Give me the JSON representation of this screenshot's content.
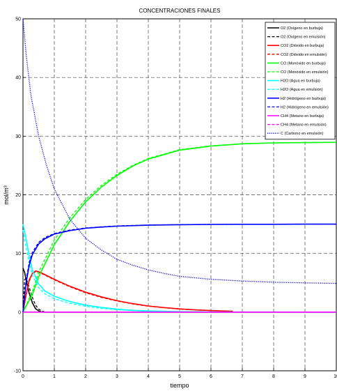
{
  "chart_data": {
    "type": "line",
    "title": "CONCENTRACIONES FINALES",
    "xlabel": "tiempo",
    "ylabel": "mol/m³",
    "xlim": [
      0,
      10
    ],
    "ylim": [
      -10,
      50
    ],
    "xticks": [
      0,
      1,
      2,
      3,
      4,
      5,
      6,
      7,
      8,
      9,
      10
    ],
    "yticks": [
      -10,
      0,
      10,
      20,
      30,
      40,
      50
    ],
    "grid": true,
    "legend_position": "top-right",
    "series": [
      {
        "name": "O2 (Oxígeno en burbuja)",
        "color": "#000000",
        "style": "solid",
        "x": [
          0,
          0.05,
          0.1,
          0.2,
          0.3,
          0.4,
          0.5,
          0.6,
          10
        ],
        "y": [
          7.5,
          6.8,
          5.5,
          3.2,
          1.6,
          0.6,
          0.2,
          0,
          0
        ]
      },
      {
        "name": "O2 (Oxígeno en emulsión)",
        "color": "#000000",
        "style": "dashed",
        "x": [
          0,
          0.05,
          0.1,
          0.2,
          0.3,
          0.4,
          0.5,
          0.6,
          0.7,
          10
        ],
        "y": [
          0,
          5.5,
          5.8,
          4.2,
          2.5,
          1.2,
          0.5,
          0.2,
          0,
          0
        ]
      },
      {
        "name": "CO2 (Dióxido en burbuja)",
        "color": "#ff0000",
        "style": "solid",
        "x": [
          0,
          0.1,
          0.2,
          0.3,
          0.4,
          0.5,
          0.7,
          1,
          1.5,
          2,
          2.5,
          3,
          3.5,
          4,
          4.5,
          5,
          5.5,
          6,
          6.5,
          6.7
        ],
        "y": [
          0,
          3,
          5.5,
          6.6,
          7.0,
          6.9,
          6.4,
          5.6,
          4.4,
          3.4,
          2.6,
          1.95,
          1.45,
          1.05,
          0.78,
          0.55,
          0.38,
          0.26,
          0.18,
          0.15
        ]
      },
      {
        "name": "CO2 (Dióxido en emulsión)",
        "color": "#ff0000",
        "style": "dashed",
        "x": [
          0,
          0.1,
          0.2,
          0.3,
          0.4,
          0.5,
          0.7,
          1,
          1.5,
          2,
          2.5,
          3,
          3.5,
          4,
          4.5,
          5,
          5.5,
          6,
          6.5,
          6.7
        ],
        "y": [
          0,
          2.8,
          5.3,
          6.5,
          6.9,
          6.8,
          6.3,
          5.5,
          4.3,
          3.3,
          2.5,
          1.9,
          1.4,
          1.0,
          0.75,
          0.52,
          0.36,
          0.25,
          0.17,
          0.14
        ]
      },
      {
        "name": "CO (Monóxido en burbuja)",
        "color": "#00ff00",
        "style": "solid",
        "x": [
          0,
          0.3,
          0.5,
          1,
          1.5,
          2,
          2.5,
          3,
          3.5,
          4,
          5,
          6,
          7,
          8,
          9,
          10
        ],
        "y": [
          0,
          3,
          6,
          11.5,
          15.5,
          18.8,
          21.3,
          23.3,
          24.9,
          26.1,
          27.6,
          28.3,
          28.7,
          28.85,
          28.9,
          28.95
        ]
      },
      {
        "name": "CO (Monóxido en emulsión)",
        "color": "#00ff00",
        "style": "dashed",
        "x": [
          0,
          0.3,
          0.5,
          1,
          1.5,
          2,
          2.5,
          3,
          3.5,
          4,
          5,
          6,
          7,
          8,
          9,
          10
        ],
        "y": [
          0,
          3.5,
          6.8,
          12.3,
          16.1,
          19.2,
          21.6,
          23.5,
          25.0,
          26.2,
          27.7,
          28.35,
          28.7,
          28.85,
          28.9,
          28.95
        ]
      },
      {
        "name": "H2O (Agua en burbuja)",
        "color": "#00ffff",
        "style": "solid",
        "x": [
          0,
          0.1,
          0.2,
          0.3,
          0.5,
          0.7,
          1,
          1.5,
          2,
          2.5,
          3,
          3.5,
          4,
          5,
          6,
          7,
          8,
          9,
          10
        ],
        "y": [
          15,
          12.5,
          9.5,
          7.2,
          4.8,
          3.6,
          2.7,
          1.8,
          1.2,
          0.8,
          0.5,
          0.3,
          0.2,
          0.08,
          0.04,
          0.02,
          0.01,
          0,
          0
        ]
      },
      {
        "name": "H2O (Agua en emulsión)",
        "color": "#00ffff",
        "style": "dashed",
        "x": [
          0,
          0.1,
          0.2,
          0.3,
          0.5,
          0.7,
          1,
          1.5,
          2,
          2.5,
          3,
          3.5,
          4,
          5,
          6,
          7,
          8,
          9,
          10
        ],
        "y": [
          14,
          11,
          8.3,
          6.3,
          4.2,
          3.1,
          2.3,
          1.5,
          1.0,
          0.65,
          0.4,
          0.25,
          0.15,
          0.06,
          0.03,
          0.01,
          0,
          0,
          0
        ]
      },
      {
        "name": "H2 (Hidrógeno en burbuja)",
        "color": "#0000ff",
        "style": "solid",
        "x": [
          0,
          0.1,
          0.2,
          0.3,
          0.5,
          0.7,
          1,
          1.5,
          2,
          2.5,
          3,
          4,
          5,
          6,
          7,
          8,
          9,
          10
        ],
        "y": [
          0,
          5,
          8,
          9.8,
          11.6,
          12.5,
          13.3,
          13.9,
          14.3,
          14.5,
          14.65,
          14.82,
          14.9,
          14.95,
          14.97,
          14.98,
          15,
          15
        ]
      },
      {
        "name": "H2 (Hidrógeno en emulsión)",
        "color": "#0000ff",
        "style": "dashed",
        "x": [
          0,
          0.1,
          0.2,
          0.3,
          0.5,
          0.7,
          1,
          1.5,
          2,
          2.5,
          3,
          4,
          5,
          6,
          7,
          8,
          9,
          10
        ],
        "y": [
          0,
          5.5,
          8.5,
          10.2,
          11.9,
          12.7,
          13.4,
          14.0,
          14.35,
          14.55,
          14.7,
          14.85,
          14.92,
          14.96,
          14.98,
          14.99,
          15,
          15
        ]
      },
      {
        "name": "CH4 (Metano en burbuja)",
        "color": "#ff00ff",
        "style": "solid",
        "x": [
          0,
          10
        ],
        "y": [
          0,
          0
        ]
      },
      {
        "name": "CH4 (Metano en emulsión)",
        "color": "#ff00ff",
        "style": "dashed",
        "x": [
          0,
          10
        ],
        "y": [
          0,
          0
        ]
      },
      {
        "name": "C (Carbono en emulsión)",
        "color": "#0000ff",
        "style": "dotted",
        "x": [
          0,
          0.1,
          0.25,
          0.5,
          0.75,
          1,
          1.5,
          2,
          2.5,
          3,
          3.5,
          4,
          4.5,
          5,
          6,
          7,
          8,
          9,
          10
        ],
        "y": [
          50,
          44,
          37,
          30,
          25,
          21,
          15.8,
          12.6,
          10.6,
          9.0,
          8.0,
          7.2,
          6.6,
          6.1,
          5.6,
          5.3,
          5.1,
          5.0,
          4.9
        ]
      }
    ]
  }
}
